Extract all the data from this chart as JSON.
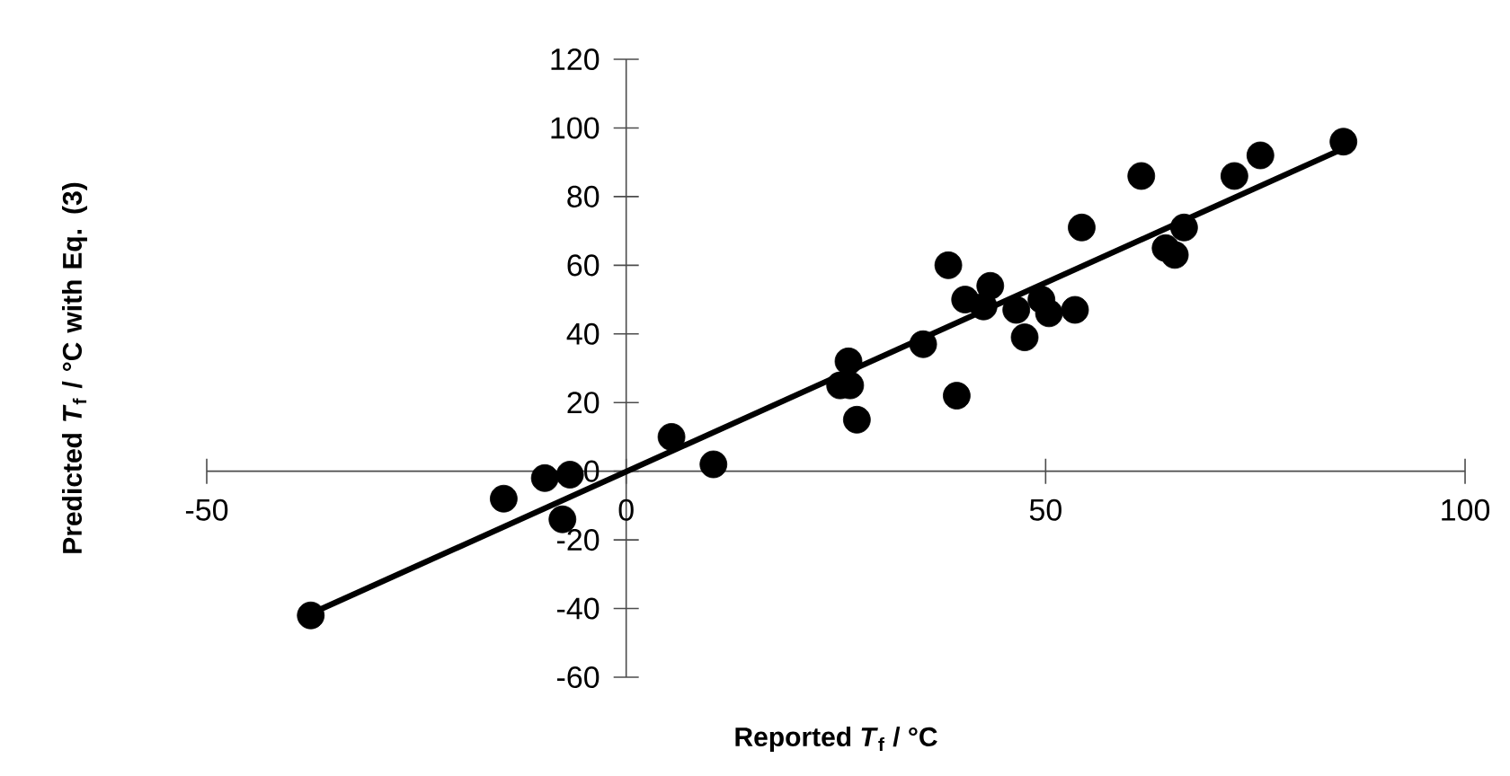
{
  "chart_data": {
    "type": "scatter",
    "xlabel": "Reported *T*$_{f}$ / °C",
    "ylabel": "Predicted *T*$_{f}$ / °C with Eq. (3)",
    "xlim": [
      -50,
      100
    ],
    "ylim": [
      -60,
      120
    ],
    "xticks": [
      -50,
      0,
      50,
      100
    ],
    "yticks": [
      -60,
      -40,
      -20,
      0,
      20,
      40,
      60,
      80,
      100,
      120
    ],
    "grid": false,
    "series": [
      {
        "color": "#000000",
        "marker": "circle",
        "x": [
          -37.6,
          -14.6,
          -9.7,
          -6.7,
          -7.6,
          5.4,
          10.4,
          25.5,
          26.7,
          26.5,
          27.5,
          35.4,
          38.4,
          39.4,
          40.4,
          42.6,
          43.4,
          46.5,
          47.5,
          49.5,
          50.4,
          53.5,
          54.3,
          61.4,
          64.3,
          65.4,
          66.5,
          72.5,
          75.6,
          85.5
        ],
        "values": [
          -42,
          -8,
          -2,
          -1,
          -14,
          10,
          2,
          25,
          25,
          32,
          15,
          37,
          60,
          22,
          50,
          48,
          54,
          47,
          39,
          50,
          46,
          47,
          71,
          86,
          65,
          63,
          71,
          86,
          92,
          96
        ]
      },
      {
        "type": "line",
        "color": "#000000",
        "marker": "none",
        "line_style": "solid",
        "x": [
          -37.6,
          85.5
        ],
        "values": [
          -41.5,
          94
        ]
      }
    ]
  }
}
